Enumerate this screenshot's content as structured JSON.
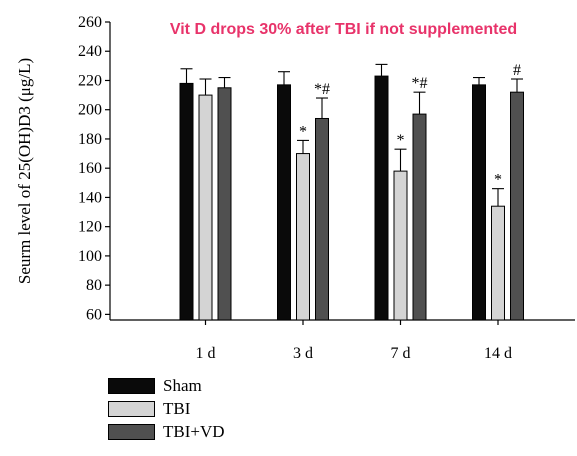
{
  "chart_data": {
    "type": "bar",
    "annotation": "Vit D drops 30% after TBI if not supplemented",
    "annotation_color": "#e8336a",
    "ylabel": "Seurm level of 25(OH)D3 (μg/L)",
    "ylim": [
      50,
      260
    ],
    "yticks": [
      60,
      80,
      100,
      120,
      140,
      160,
      180,
      200,
      220,
      240,
      260
    ],
    "categories": [
      "1 d",
      "3 d",
      "7 d",
      "14 d"
    ],
    "series": [
      {
        "name": "Sham",
        "color": "#0a0a0a",
        "values": [
          218,
          217,
          223,
          217
        ],
        "errors": [
          10,
          9,
          8,
          5
        ],
        "marks": [
          "",
          "",
          "",
          ""
        ]
      },
      {
        "name": "TBI",
        "color": "#d4d4d4",
        "values": [
          210,
          170,
          158,
          134
        ],
        "errors": [
          11,
          9,
          15,
          12
        ],
        "marks": [
          "",
          "*",
          "*",
          "*"
        ]
      },
      {
        "name": "TBI+VD",
        "color": "#505050",
        "values": [
          215,
          194,
          197,
          212
        ],
        "errors": [
          7,
          14,
          15,
          9
        ],
        "marks": [
          "",
          "*#",
          "*#",
          "#"
        ]
      }
    ],
    "legend_position": "bottom-left",
    "grid": false
  }
}
